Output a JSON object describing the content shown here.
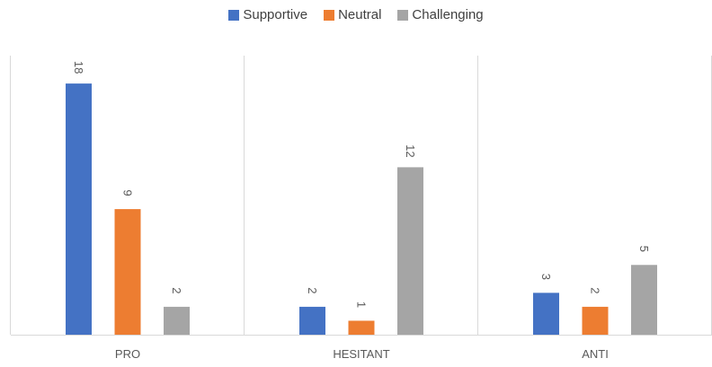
{
  "chart_data": {
    "type": "bar",
    "categories": [
      "PRO",
      "HESITANT",
      "ANTI"
    ],
    "series": [
      {
        "name": "Supportive",
        "values": [
          18,
          2,
          3
        ],
        "color": "#4472C4"
      },
      {
        "name": "Neutral",
        "values": [
          9,
          1,
          2
        ],
        "color": "#ED7D31"
      },
      {
        "name": "Challenging",
        "values": [
          2,
          12,
          5
        ],
        "color": "#A5A5A5"
      }
    ],
    "title": "",
    "xlabel": "",
    "ylabel": "",
    "ylim": [
      0,
      20
    ],
    "grid": false,
    "category_separators": true,
    "data_labels": true,
    "legend_position": "top-center"
  }
}
